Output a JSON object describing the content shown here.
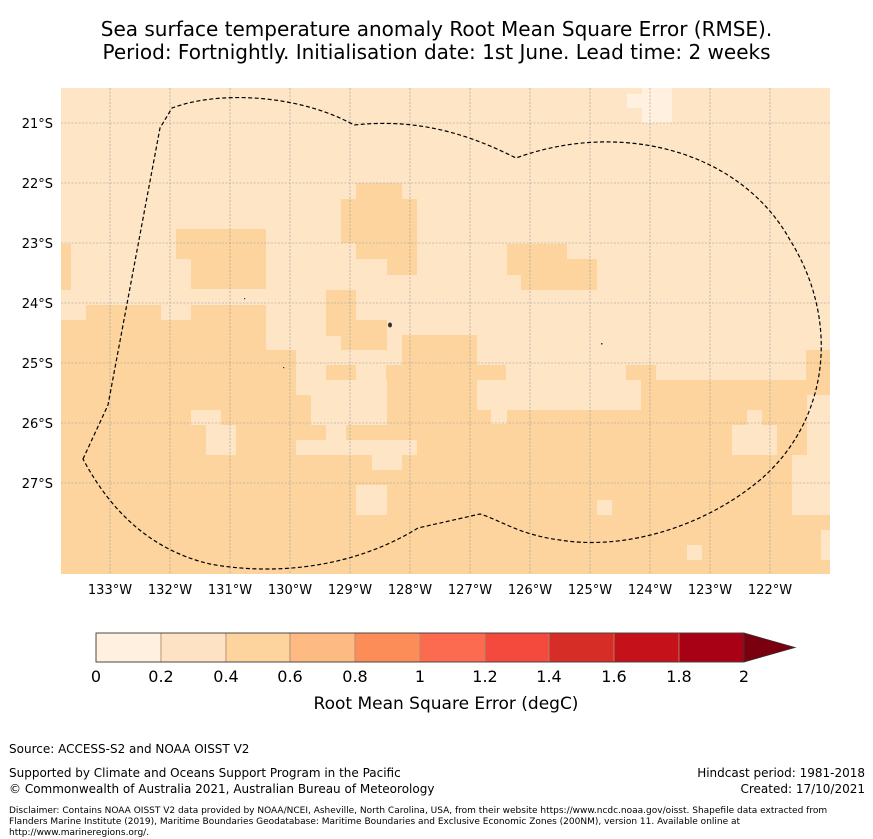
{
  "title_line1": "Sea surface temperature anomaly Root Mean Square Error (RMSE).",
  "title_line2": "Period: Fortnightly. Initialisation date: 1st June. Lead time: 2 weeks",
  "map": {
    "lon_labels": [
      "133°W",
      "132°W",
      "131°W",
      "130°W",
      "129°W",
      "128°W",
      "127°W",
      "126°W",
      "125°W",
      "124°W",
      "123°W",
      "122°W"
    ],
    "lat_labels": [
      "21°S",
      "22°S",
      "23°S",
      "24°S",
      "25°S",
      "26°S",
      "27°S"
    ],
    "colors": {
      "bin_0_0.2": "#fff0df",
      "bin_0.2_0.4": "#fde5c5",
      "bin_0.4_0.6": "#fdd49e",
      "eez_boundary": "#000000",
      "grid": "#999999"
    }
  },
  "colorbar": {
    "ticks": [
      "0",
      "0.2",
      "0.4",
      "0.6",
      "0.8",
      "1",
      "1.2",
      "1.4",
      "1.6",
      "1.8",
      "2"
    ],
    "colors": [
      "#fff0df",
      "#fde3c4",
      "#fdd49e",
      "#fdba82",
      "#fc8d59",
      "#fc6a4f",
      "#f44a3d",
      "#d62e26",
      "#c5111a",
      "#a80014",
      "#7a0010"
    ],
    "label": "Root Mean Square Error (degC)"
  },
  "footer": {
    "source": "Source: ACCESS-S2 and NOAA OISST V2",
    "support": "Supported by Climate and Oceans Support Program in the Pacific",
    "copyright": "© Commonwealth of Australia 2021, Australian Bureau of Meteorology",
    "hindcast": "Hindcast period: 1981-2018",
    "created": "Created: 17/10/2021",
    "disclaimer": "Disclaimer: Contains NOAA OISST V2 data provided by NOAA/NCEI, Asheville, North Carolina, USA, from their website https://www.ncdc.noaa.gov/oisst. Shapefile data extracted from Flanders Marine Institute (2019), Maritime Boundaries Geodatabase: Maritime Boundaries and Exclusive Economic Zones (200NM), version 11. Available online at http://www.marineregions.org/."
  }
}
